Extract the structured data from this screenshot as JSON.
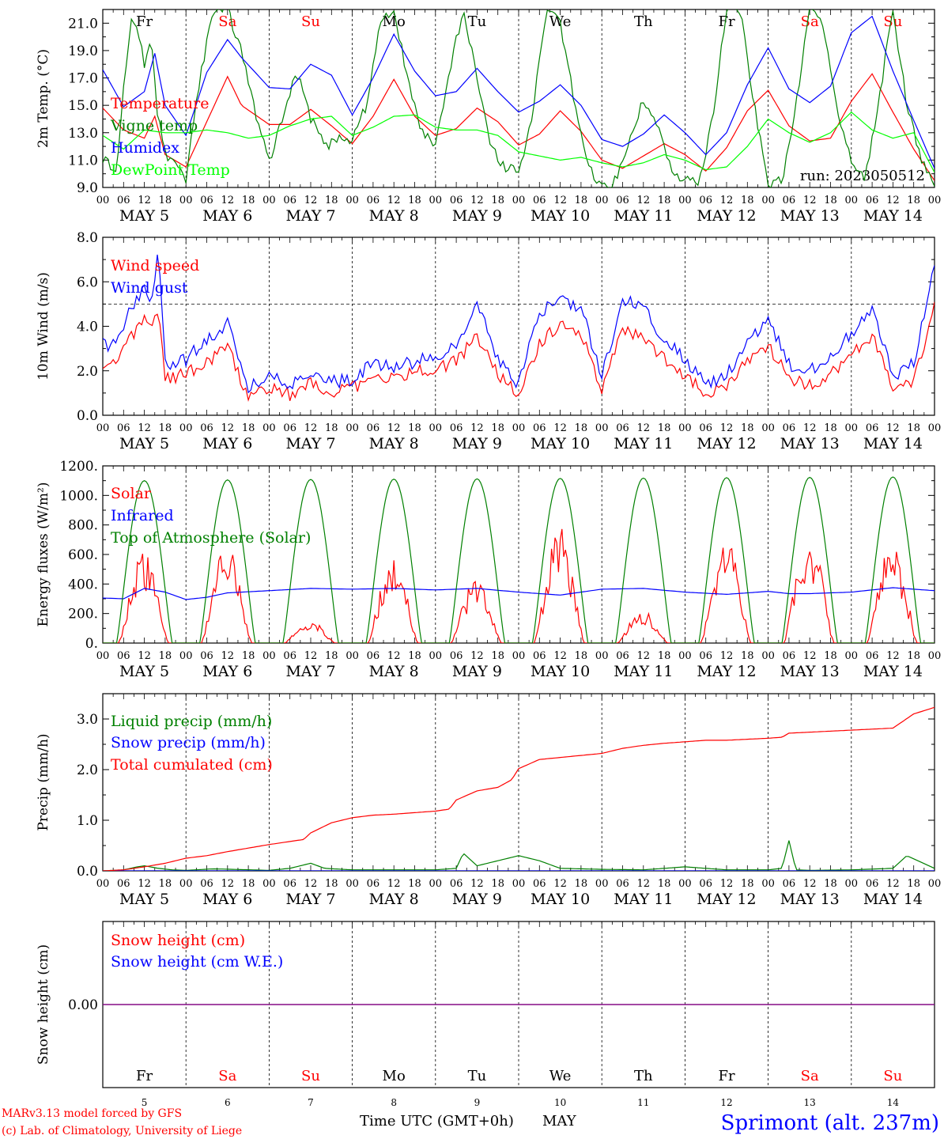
{
  "footer": {
    "credit_line1": "MARv3.13 model forced by GFS",
    "credit_line2": "(c) Lab. of Climatology, University of Liege",
    "xlabel": "Time UTC (GMT+0h)",
    "month": "MAY",
    "station": "Sprimont (alt. 237m)"
  },
  "run_label": "run: 2023050512",
  "colors": {
    "red": "#ff0000",
    "blue": "#0000ff",
    "green": "#008000",
    "light_green": "#00ff00",
    "purple": "#800080",
    "weekday": "#000000",
    "weekend": "#ff0000"
  },
  "days": [
    {
      "abbr": "Fr",
      "date": "MAY  5",
      "num": "5",
      "weekend": false
    },
    {
      "abbr": "Sa",
      "date": "MAY  6",
      "num": "6",
      "weekend": true
    },
    {
      "abbr": "Su",
      "date": "MAY  7",
      "num": "7",
      "weekend": true
    },
    {
      "abbr": "Mo",
      "date": "MAY  8",
      "num": "8",
      "weekend": false
    },
    {
      "abbr": "Tu",
      "date": "MAY  9",
      "num": "9",
      "weekend": false
    },
    {
      "abbr": "We",
      "date": "MAY 10",
      "num": "10",
      "weekend": false
    },
    {
      "abbr": "Th",
      "date": "MAY 11",
      "num": "11",
      "weekend": false
    },
    {
      "abbr": "Fr",
      "date": "MAY 12",
      "num": "12",
      "weekend": false
    },
    {
      "abbr": "Sa",
      "date": "MAY 13",
      "num": "13",
      "weekend": true
    },
    {
      "abbr": "Su",
      "date": "MAY 14",
      "num": "14",
      "weekend": true
    }
  ],
  "hour_labels": [
    "00",
    "06",
    "12",
    "18"
  ],
  "chart_data": [
    {
      "type": "line",
      "id": "temperature",
      "ylabel": "2m Temp. (°C)",
      "ylim": [
        9.0,
        22.0
      ],
      "yticks": [
        "9.0",
        "11.0",
        "13.0",
        "15.0",
        "17.0",
        "19.0",
        "21.0"
      ],
      "x_unit": "hours since May 5 00 UTC",
      "series": [
        {
          "name": "Temperature",
          "color": "#ff0000",
          "x": [
            0,
            6,
            12,
            15,
            18,
            24,
            30,
            36,
            40,
            48,
            54,
            60,
            66,
            72,
            78,
            84,
            90,
            96,
            102,
            108,
            114,
            120,
            126,
            132,
            138,
            144,
            150,
            156,
            162,
            168,
            174,
            180,
            186,
            192,
            198,
            204,
            210,
            216,
            222,
            228,
            234,
            240
          ],
          "y": [
            14.8,
            13.2,
            12.6,
            14.2,
            11.4,
            10.5,
            13.8,
            17.1,
            15.0,
            13.6,
            13.6,
            14.7,
            13.5,
            12.2,
            14.2,
            16.9,
            14.2,
            12.8,
            13.3,
            14.8,
            13.8,
            12.1,
            12.9,
            14.6,
            13.1,
            11.0,
            10.4,
            11.3,
            12.2,
            11.4,
            10.2,
            11.9,
            14.6,
            16.1,
            13.5,
            12.4,
            12.6,
            15.3,
            17.3,
            14.5,
            11.8,
            9.5
          ]
        },
        {
          "name": "Vigne temp",
          "color": "#008000",
          "x": [
            0,
            4,
            6,
            8,
            10,
            12,
            14,
            16,
            18,
            24,
            28,
            32,
            36,
            40,
            44,
            48,
            52,
            56,
            60,
            64,
            68,
            72,
            76,
            80,
            84,
            88,
            92,
            96,
            100,
            104,
            108,
            112,
            116,
            120,
            124,
            128,
            132,
            136,
            140,
            144,
            148,
            152,
            156,
            160,
            164,
            168,
            172,
            176,
            180,
            184,
            188,
            192,
            196,
            200,
            204,
            208,
            212,
            216,
            220,
            224,
            228,
            232,
            236,
            240
          ],
          "y": [
            11.2,
            10.0,
            16.0,
            21.0,
            20.5,
            18.0,
            19.5,
            14.0,
            11.5,
            9.5,
            17.0,
            22.0,
            22.0,
            19.0,
            14.5,
            11.0,
            14.0,
            17.5,
            14.0,
            12.0,
            12.5,
            12.5,
            15.0,
            21.0,
            22.0,
            17.0,
            13.0,
            12.0,
            17.5,
            22.0,
            17.0,
            12.0,
            10.5,
            10.0,
            14.5,
            22.0,
            21.0,
            15.5,
            10.5,
            9.0,
            9.5,
            12.5,
            15.5,
            13.5,
            10.5,
            9.5,
            9.3,
            14.0,
            22.0,
            22.0,
            15.0,
            9.0,
            9.5,
            15.0,
            22.0,
            21.0,
            14.5,
            11.0,
            9.5,
            15.5,
            22.0,
            15.0,
            11.0,
            9.3
          ]
        },
        {
          "name": "Humidex",
          "color": "#0000ff",
          "x": [
            0,
            6,
            12,
            15,
            18,
            24,
            30,
            36,
            40,
            48,
            54,
            60,
            66,
            72,
            78,
            84,
            90,
            96,
            102,
            108,
            114,
            120,
            126,
            132,
            138,
            144,
            150,
            156,
            162,
            168,
            174,
            180,
            186,
            192,
            198,
            204,
            210,
            216,
            222,
            228,
            234,
            240
          ],
          "y": [
            17.6,
            14.9,
            16.0,
            18.8,
            15.0,
            12.8,
            17.4,
            19.8,
            18.5,
            16.3,
            16.2,
            18.0,
            17.2,
            14.3,
            17.0,
            20.2,
            17.5,
            15.7,
            16.0,
            17.7,
            16.0,
            14.5,
            15.3,
            16.5,
            15.0,
            12.5,
            12.0,
            12.9,
            14.3,
            13.0,
            11.4,
            13.0,
            16.5,
            19.2,
            16.2,
            15.2,
            16.4,
            20.3,
            21.5,
            17.5,
            13.9,
            10.4
          ]
        },
        {
          "name": "DewPoint Temp",
          "color": "#00ff00",
          "x": [
            0,
            6,
            12,
            18,
            24,
            30,
            36,
            42,
            48,
            54,
            60,
            66,
            72,
            78,
            84,
            90,
            96,
            102,
            108,
            114,
            120,
            126,
            132,
            138,
            144,
            150,
            156,
            162,
            168,
            174,
            180,
            186,
            192,
            198,
            204,
            210,
            216,
            222,
            228,
            234,
            240
          ],
          "y": [
            12.8,
            11.8,
            13.2,
            13.0,
            13.0,
            13.2,
            13.0,
            12.6,
            12.8,
            13.5,
            14.0,
            14.2,
            12.8,
            13.4,
            14.2,
            14.3,
            13.4,
            13.2,
            13.2,
            12.8,
            11.6,
            11.3,
            11.0,
            11.2,
            10.8,
            10.5,
            10.8,
            11.4,
            11.0,
            10.3,
            10.5,
            12.0,
            14.0,
            13.0,
            12.3,
            13.0,
            14.5,
            13.2,
            12.6,
            13.0,
            10.1
          ]
        }
      ]
    },
    {
      "type": "line",
      "id": "wind",
      "ylabel": "10m Wind (m/s)",
      "ylim": [
        0.0,
        8.0
      ],
      "yticks": [
        "0.0",
        "2.0",
        "4.0",
        "6.0",
        "8.0"
      ],
      "reference_line": 5.0,
      "series": [
        {
          "name": "Wind speed",
          "color": "#ff0000",
          "x": [
            0,
            4,
            8,
            12,
            14,
            16,
            18,
            24,
            30,
            36,
            40,
            42,
            48,
            54,
            60,
            66,
            72,
            78,
            84,
            90,
            96,
            102,
            108,
            114,
            120,
            126,
            132,
            138,
            144,
            150,
            156,
            162,
            168,
            174,
            180,
            186,
            192,
            198,
            204,
            210,
            216,
            222,
            228,
            234,
            240
          ],
          "y": [
            2.4,
            2.5,
            3.6,
            4.2,
            3.7,
            4.9,
            1.6,
            1.9,
            2.4,
            3.1,
            1.5,
            0.8,
            1.3,
            0.9,
            1.4,
            1.1,
            1.2,
            1.8,
            1.7,
            2.0,
            2.1,
            2.4,
            3.6,
            1.8,
            1.0,
            3.2,
            4.1,
            3.6,
            1.2,
            3.8,
            3.5,
            2.6,
            1.8,
            1.0,
            1.2,
            2.5,
            3.2,
            1.6,
            1.4,
            1.8,
            2.7,
            3.6,
            1.3,
            1.5,
            4.9
          ]
        },
        {
          "name": "Wind gust",
          "color": "#0000ff",
          "x": [
            0,
            4,
            8,
            12,
            14,
            16,
            18,
            24,
            30,
            36,
            40,
            42,
            48,
            54,
            60,
            66,
            72,
            78,
            84,
            90,
            96,
            102,
            108,
            114,
            120,
            126,
            132,
            138,
            144,
            150,
            156,
            162,
            168,
            174,
            180,
            186,
            192,
            198,
            204,
            210,
            216,
            222,
            228,
            234,
            240
          ],
          "y": [
            3.2,
            3.1,
            4.8,
            5.6,
            5.0,
            7.4,
            2.3,
            2.5,
            3.4,
            4.1,
            2.1,
            1.2,
            1.8,
            1.3,
            1.8,
            1.5,
            1.6,
            2.3,
            2.2,
            2.4,
            2.7,
            3.1,
            5.2,
            2.5,
            1.4,
            4.6,
            5.3,
            4.8,
            1.8,
            5.2,
            4.8,
            3.4,
            2.5,
            1.4,
            1.8,
            3.2,
            4.3,
            2.3,
            2.0,
            2.6,
            3.7,
            4.7,
            1.8,
            2.3,
            6.7
          ]
        }
      ]
    },
    {
      "type": "line",
      "id": "energy",
      "ylabel": "Energy fluxes (W/m²)",
      "ylim": [
        0,
        1200
      ],
      "yticks": [
        "0.",
        "200.",
        "400.",
        "600.",
        "800.",
        "1000.",
        "1200."
      ],
      "series": [
        {
          "name": "Solar",
          "color": "#ff0000",
          "daily_peaks": [
            610,
            670,
            160,
            590,
            450,
            790,
            220,
            710,
            750,
            680
          ]
        },
        {
          "name": "Infrared",
          "color": "#0000ff",
          "x": [
            0,
            6,
            12,
            18,
            24,
            30,
            36,
            48,
            60,
            72,
            84,
            96,
            108,
            120,
            132,
            144,
            156,
            168,
            180,
            192,
            198,
            204,
            216,
            228,
            240
          ],
          "y": [
            305,
            300,
            370,
            345,
            295,
            310,
            340,
            355,
            370,
            365,
            370,
            360,
            370,
            345,
            325,
            365,
            370,
            345,
            330,
            350,
            335,
            335,
            345,
            375,
            355
          ]
        },
        {
          "name": "Top of Atmosphere (Solar)",
          "color": "#008000",
          "daily_peaks": [
            1100,
            1105,
            1108,
            1110,
            1112,
            1115,
            1117,
            1120,
            1122,
            1125
          ]
        }
      ]
    },
    {
      "type": "line",
      "id": "precip",
      "ylabel": "Precip (mm/h)",
      "ylim": [
        0.0,
        3.5
      ],
      "yticks": [
        "0.0",
        "1.0",
        "2.0",
        "3.0"
      ],
      "series": [
        {
          "name": "Liquid precip (mm/h)",
          "color": "#008000",
          "x": [
            0,
            6,
            10,
            12,
            16,
            20,
            24,
            32,
            48,
            54,
            60,
            64,
            72,
            96,
            102,
            104,
            108,
            120,
            126,
            132,
            144,
            156,
            168,
            180,
            192,
            196,
            198,
            200,
            204,
            216,
            228,
            232,
            240
          ],
          "y": [
            0,
            0.02,
            0.08,
            0.1,
            0.05,
            0.02,
            0.01,
            0.04,
            0.01,
            0.05,
            0.15,
            0.05,
            0.02,
            0.02,
            0.05,
            0.35,
            0.1,
            0.3,
            0.2,
            0.05,
            0.03,
            0.02,
            0.08,
            0.02,
            0.02,
            0.05,
            0.6,
            0.02,
            0.01,
            0.02,
            0.05,
            0.3,
            0.05
          ]
        },
        {
          "name": "Snow precip (mm/h)",
          "color": "#0000ff",
          "x": [
            0,
            240
          ],
          "y": [
            0,
            0
          ]
        },
        {
          "name": "Total cumulated (cm)",
          "color": "#ff0000",
          "x": [
            0,
            6,
            12,
            18,
            24,
            30,
            36,
            42,
            48,
            54,
            58,
            60,
            66,
            72,
            78,
            84,
            90,
            96,
            100,
            102,
            108,
            114,
            118,
            120,
            126,
            132,
            138,
            144,
            150,
            156,
            162,
            168,
            174,
            180,
            186,
            192,
            196,
            198,
            204,
            210,
            216,
            222,
            228,
            234,
            240
          ],
          "y": [
            0,
            0.02,
            0.08,
            0.15,
            0.25,
            0.3,
            0.38,
            0.45,
            0.52,
            0.58,
            0.62,
            0.75,
            0.95,
            1.05,
            1.1,
            1.12,
            1.15,
            1.18,
            1.22,
            1.4,
            1.58,
            1.65,
            1.8,
            2.02,
            2.2,
            2.24,
            2.28,
            2.32,
            2.42,
            2.48,
            2.52,
            2.55,
            2.58,
            2.58,
            2.6,
            2.62,
            2.64,
            2.72,
            2.74,
            2.76,
            2.78,
            2.8,
            2.82,
            3.1,
            3.23
          ]
        }
      ]
    },
    {
      "type": "line",
      "id": "snow",
      "ylabel": "Snow height (cm)",
      "yticks": [
        "0.00"
      ],
      "series": [
        {
          "name": "Snow height (cm)",
          "color": "#ff0000",
          "x": [
            0,
            240
          ],
          "y": [
            0,
            0
          ]
        },
        {
          "name": "Snow height (cm W.E.)",
          "color": "#0000ff",
          "x": [
            0,
            240
          ],
          "y": [
            0,
            0
          ]
        }
      ]
    }
  ]
}
